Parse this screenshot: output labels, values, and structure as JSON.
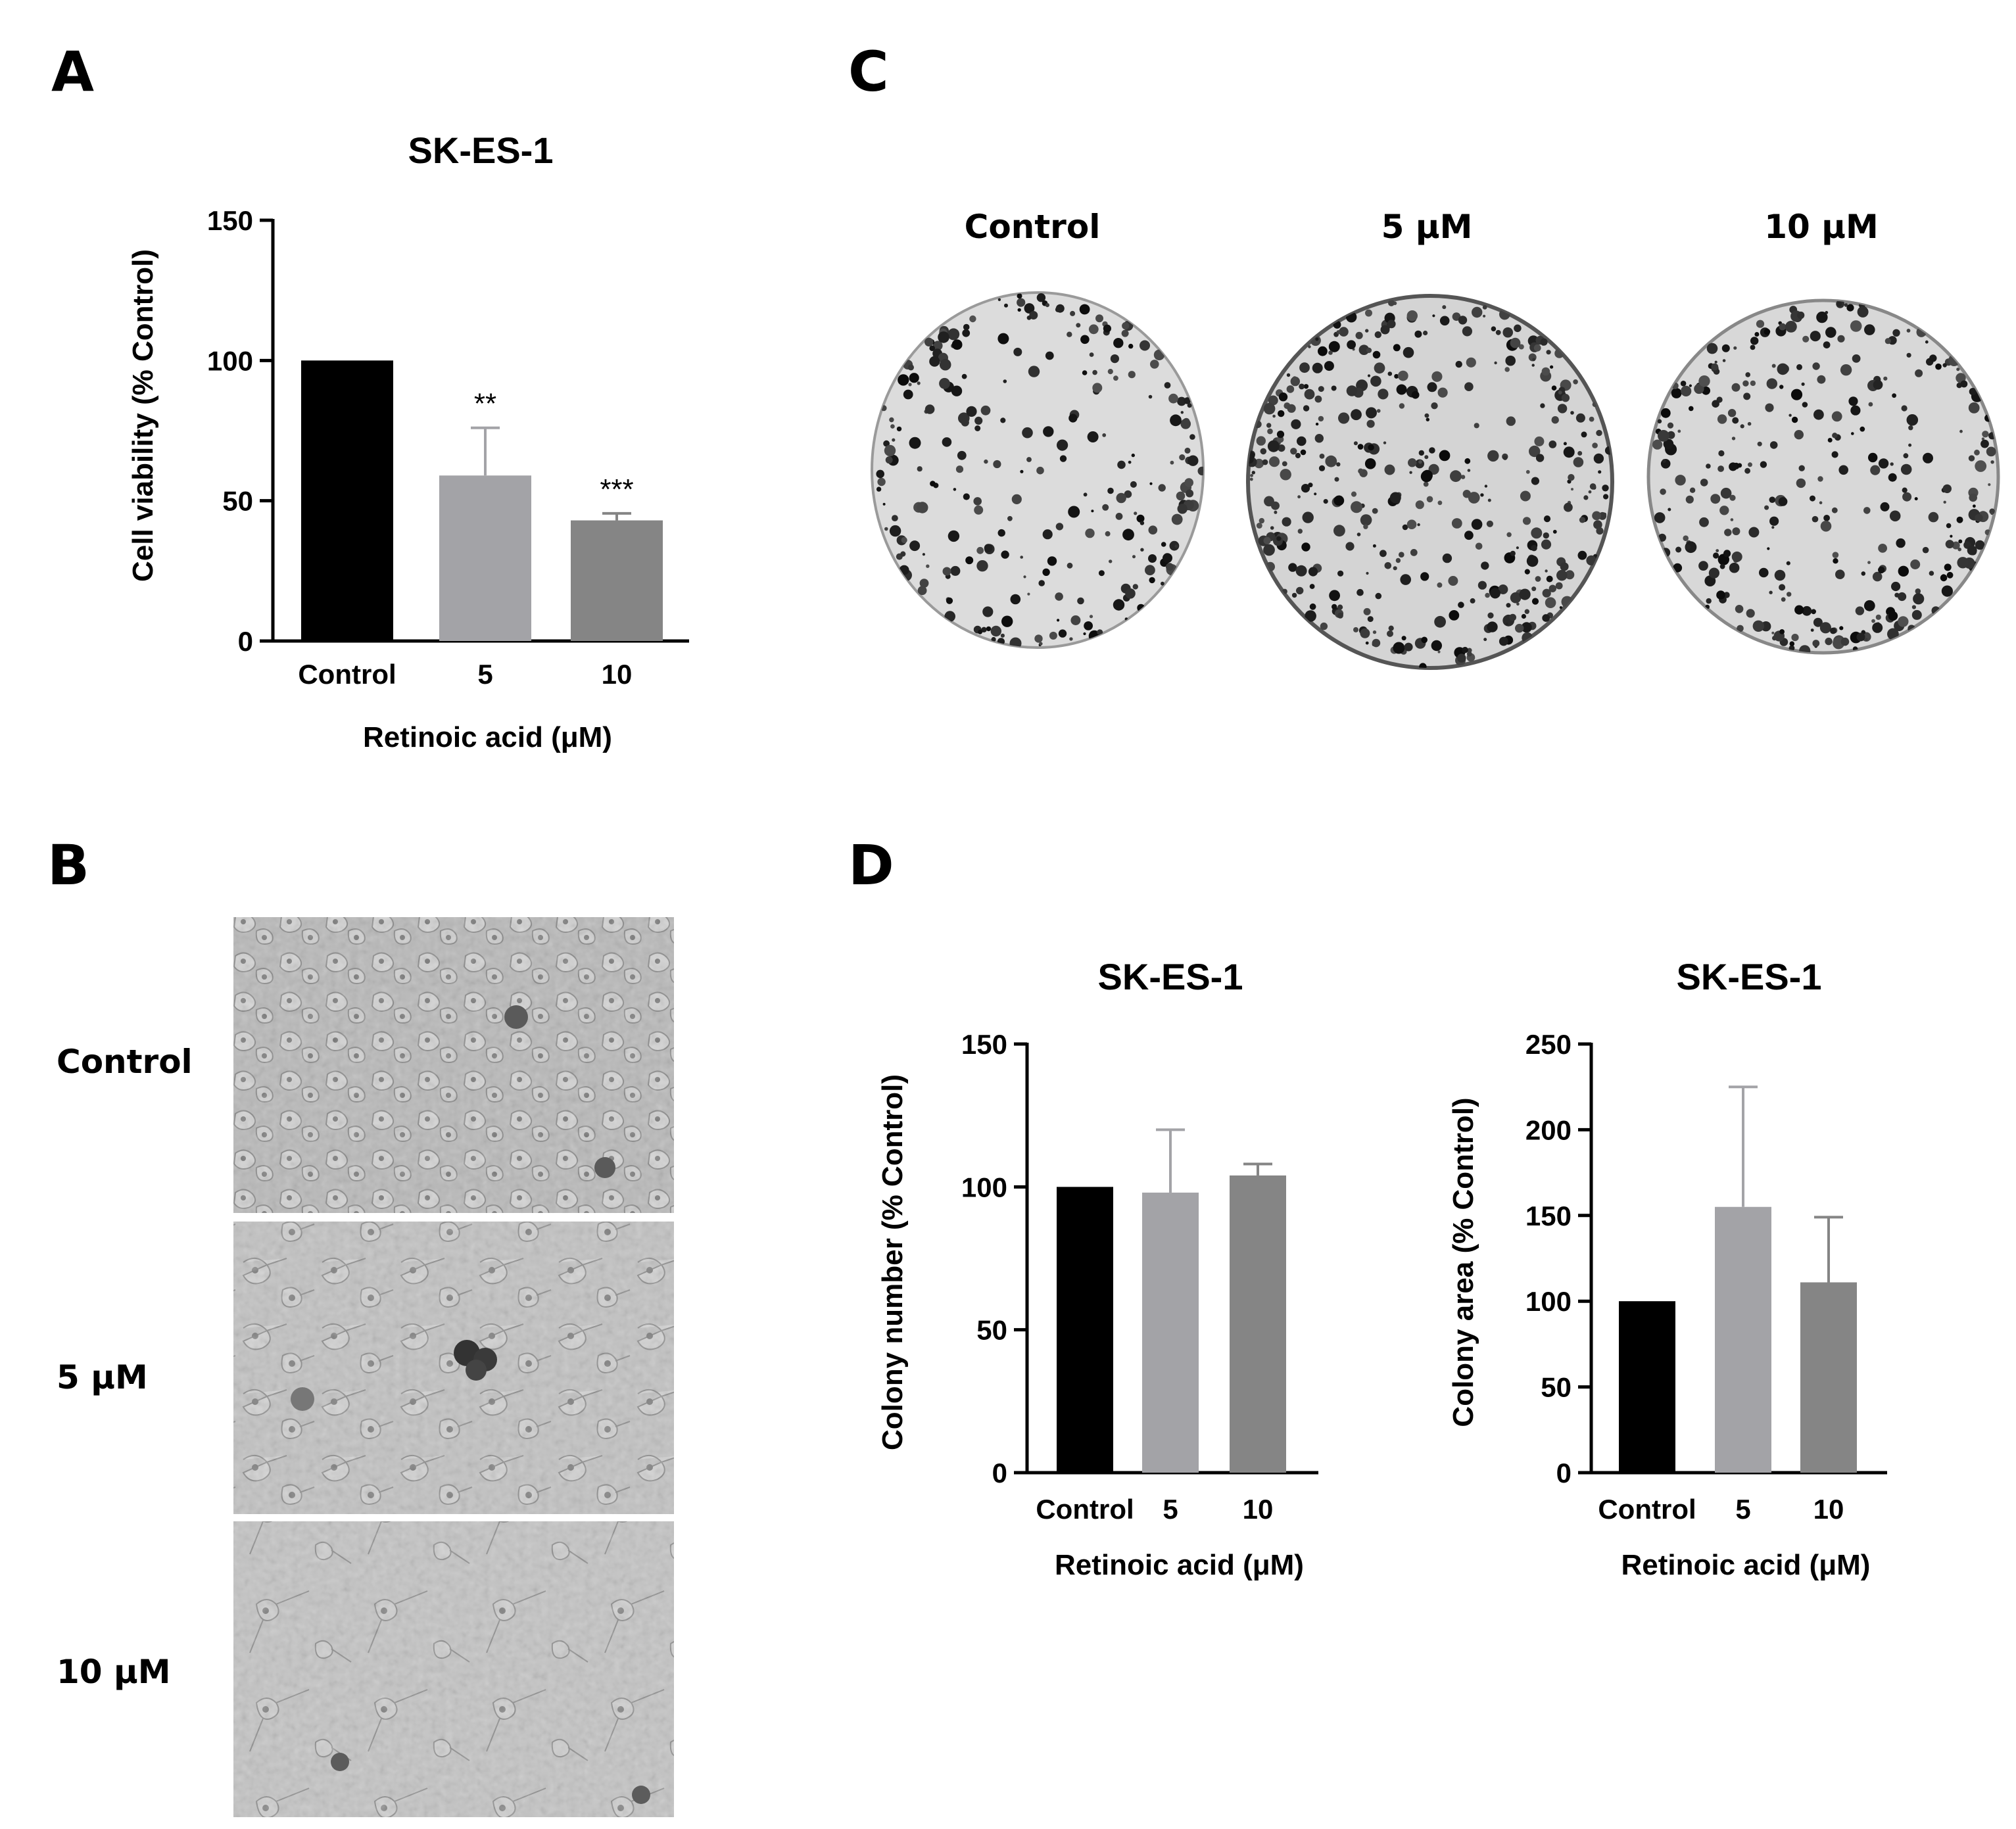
{
  "panels": {
    "A": "A",
    "B": "B",
    "C": "C",
    "D": "D"
  },
  "panel_b": {
    "rows": [
      "Control",
      "5 μM",
      "10 μM"
    ]
  },
  "panel_c": {
    "columns": [
      "Control",
      "5 μM",
      "10 μM"
    ]
  },
  "chart_data": [
    {
      "id": "viability",
      "type": "bar",
      "title": "SK-ES-1",
      "xlabel": "Retinoic acid (μM)",
      "ylabel": "Cell viability (% Control)",
      "categories": [
        "Control",
        "5",
        "10"
      ],
      "values": [
        100,
        59,
        43
      ],
      "errors": [
        0,
        17,
        2.5
      ],
      "significance": [
        "",
        "**",
        "***"
      ],
      "ylim": [
        0,
        150
      ],
      "yticks": [
        0,
        50,
        100,
        150
      ],
      "colors": [
        "#000000",
        "#a3a3a7",
        "#858585"
      ]
    },
    {
      "id": "colony-number",
      "type": "bar",
      "title": "SK-ES-1",
      "xlabel": "Retinoic acid (μM)",
      "ylabel": "Colony number (% Control)",
      "categories": [
        "Control",
        "5",
        "10"
      ],
      "values": [
        100,
        98,
        104
      ],
      "errors": [
        0,
        22,
        4
      ],
      "significance": [
        "",
        "",
        ""
      ],
      "ylim": [
        0,
        150
      ],
      "yticks": [
        0,
        50,
        100,
        150
      ],
      "colors": [
        "#000000",
        "#a3a3a7",
        "#858585"
      ]
    },
    {
      "id": "colony-area",
      "type": "bar",
      "title": "SK-ES-1",
      "xlabel": "Retinoic acid (μM)",
      "ylabel": "Colony area (% Control)",
      "categories": [
        "Control",
        "5",
        "10"
      ],
      "values": [
        100,
        155,
        111
      ],
      "errors": [
        0,
        70,
        38
      ],
      "significance": [
        "",
        "",
        ""
      ],
      "ylim": [
        0,
        250
      ],
      "yticks": [
        0,
        50,
        100,
        150,
        200,
        250
      ],
      "colors": [
        "#000000",
        "#a3a3a7",
        "#858585"
      ]
    }
  ]
}
